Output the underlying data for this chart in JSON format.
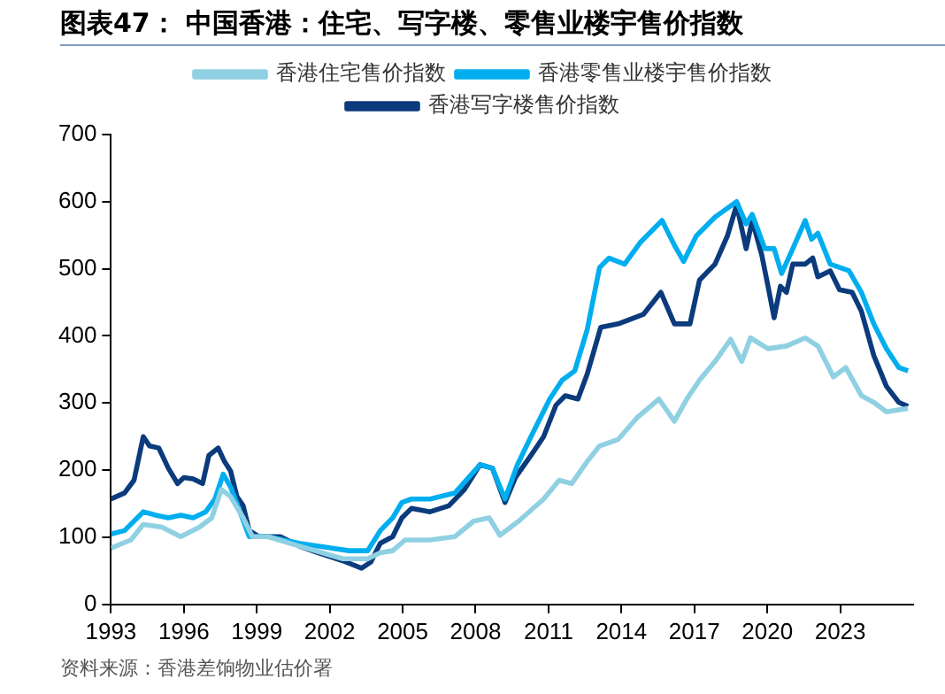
{
  "chart_data": {
    "type": "line",
    "title": "图表47：  中国香港：住宅、写字楼、零售业楼宇售价指数",
    "annotations": [
      "资料来源：香港差饷物业估价署"
    ],
    "xlim": [
      1993,
      2026
    ],
    "xticks": [
      1993,
      1996,
      1999,
      2002,
      2005,
      2008,
      2011,
      2014,
      2017,
      2020,
      2023
    ],
    "ylim": [
      0,
      700
    ],
    "yticks": [
      0,
      100,
      200,
      300,
      400,
      500,
      600,
      700
    ],
    "grid": false,
    "legend": "top",
    "marker": "none",
    "line_style": "solid",
    "series": [
      {
        "name": "香港住宅售价指数",
        "color": "#8fd0e2",
        "x": [
          1993.0,
          1993.82,
          1994.33,
          1995.1,
          1995.87,
          1996.64,
          1997.15,
          1997.54,
          1997.92,
          1998.44,
          1998.82,
          1999.46,
          2000.74,
          2002.54,
          2003.56,
          2004.08,
          2004.59,
          2005.1,
          2006.13,
          2007.15,
          2007.92,
          2008.56,
          2009.0,
          2009.77,
          2010.8,
          2011.44,
          2011.95,
          2012.59,
          2013.1,
          2013.87,
          2014.64,
          2015.54,
          2016.18,
          2016.69,
          2017.21,
          2017.85,
          2018.49,
          2018.95,
          2019.31,
          2020.03,
          2020.79,
          2021.56,
          2022.08,
          2022.72,
          2023.23,
          2023.87,
          2024.38,
          2024.9,
          2025.79
        ],
        "values": [
          84,
          96,
          119,
          115,
          101,
          115,
          129,
          171,
          161,
          129,
          101,
          101,
          87,
          68,
          68,
          77,
          80,
          96,
          96,
          101,
          124,
          129,
          103,
          124,
          157,
          185,
          180,
          213,
          236,
          246,
          278,
          306,
          273,
          306,
          334,
          362,
          395,
          362,
          397,
          381,
          385,
          397,
          385,
          339,
          353,
          311,
          301,
          287,
          292
        ]
      },
      {
        "name": "香港零售业楼宇售价指数",
        "color": "#00aeef",
        "x": [
          1993.0,
          1993.56,
          1994.33,
          1994.85,
          1995.36,
          1995.87,
          1996.38,
          1996.9,
          1997.28,
          1997.62,
          1997.92,
          1998.31,
          1998.69,
          1999.46,
          2000.74,
          2002.03,
          2002.79,
          2003.56,
          2004.08,
          2004.59,
          2004.97,
          2005.36,
          2006.13,
          2007.15,
          2008.18,
          2008.69,
          2009.21,
          2009.72,
          2010.28,
          2011.05,
          2011.56,
          2012.08,
          2012.59,
          2013.1,
          2013.49,
          2014.13,
          2014.77,
          2015.67,
          2016.18,
          2016.56,
          2017.08,
          2017.85,
          2018.74,
          2019.13,
          2019.38,
          2019.9,
          2020.28,
          2020.59,
          2021.05,
          2021.56,
          2021.82,
          2022.08,
          2022.59,
          2023.36,
          2023.87,
          2024.38,
          2024.9,
          2025.41,
          2025.79
        ],
        "values": [
          105,
          110,
          138,
          133,
          129,
          133,
          129,
          138,
          157,
          194,
          175,
          138,
          101,
          101,
          91,
          84,
          80,
          80,
          110,
          129,
          152,
          157,
          157,
          166,
          208,
          203,
          157,
          208,
          250,
          306,
          334,
          348,
          409,
          502,
          516,
          507,
          539,
          572,
          535,
          511,
          549,
          577,
          600,
          567,
          581,
          530,
          530,
          493,
          530,
          572,
          544,
          553,
          507,
          497,
          465,
          418,
          381,
          353,
          348
        ]
      },
      {
        "name": "香港写字楼售价指数",
        "color": "#0b3b7c",
        "x": [
          1993.0,
          1993.56,
          1993.95,
          1994.33,
          1994.59,
          1994.97,
          1995.36,
          1995.74,
          1996.0,
          1996.38,
          1996.77,
          1997.03,
          1997.41,
          1997.67,
          1997.92,
          1998.18,
          1998.44,
          1998.69,
          1999.08,
          1999.97,
          2000.74,
          2001.51,
          2002.54,
          2003.31,
          2003.69,
          2004.08,
          2004.59,
          2004.97,
          2005.36,
          2006.13,
          2006.9,
          2007.54,
          2008.18,
          2008.69,
          2009.21,
          2009.64,
          2010.28,
          2010.8,
          2011.31,
          2011.69,
          2012.21,
          2012.59,
          2013.15,
          2013.87,
          2014.9,
          2015.62,
          2016.18,
          2016.82,
          2017.21,
          2017.85,
          2018.36,
          2018.74,
          2019.13,
          2019.38,
          2019.77,
          2020.03,
          2020.28,
          2020.54,
          2020.79,
          2021.05,
          2021.56,
          2021.87,
          2022.08,
          2022.59,
          2022.97,
          2023.49,
          2023.87,
          2024.38,
          2024.9,
          2025.41,
          2025.79
        ],
        "values": [
          157,
          166,
          185,
          250,
          236,
          233,
          203,
          180,
          189,
          187,
          180,
          222,
          233,
          213,
          199,
          161,
          147,
          110,
          101,
          101,
          87,
          77,
          65,
          54,
          63,
          91,
          101,
          129,
          143,
          138,
          147,
          171,
          208,
          203,
          152,
          189,
          222,
          250,
          297,
          311,
          306,
          343,
          413,
          418,
          432,
          465,
          418,
          418,
          483,
          507,
          549,
          595,
          530,
          572,
          521,
          474,
          427,
          474,
          465,
          507,
          507,
          516,
          488,
          497,
          469,
          465,
          437,
          371,
          325,
          301,
          295
        ]
      }
    ]
  }
}
